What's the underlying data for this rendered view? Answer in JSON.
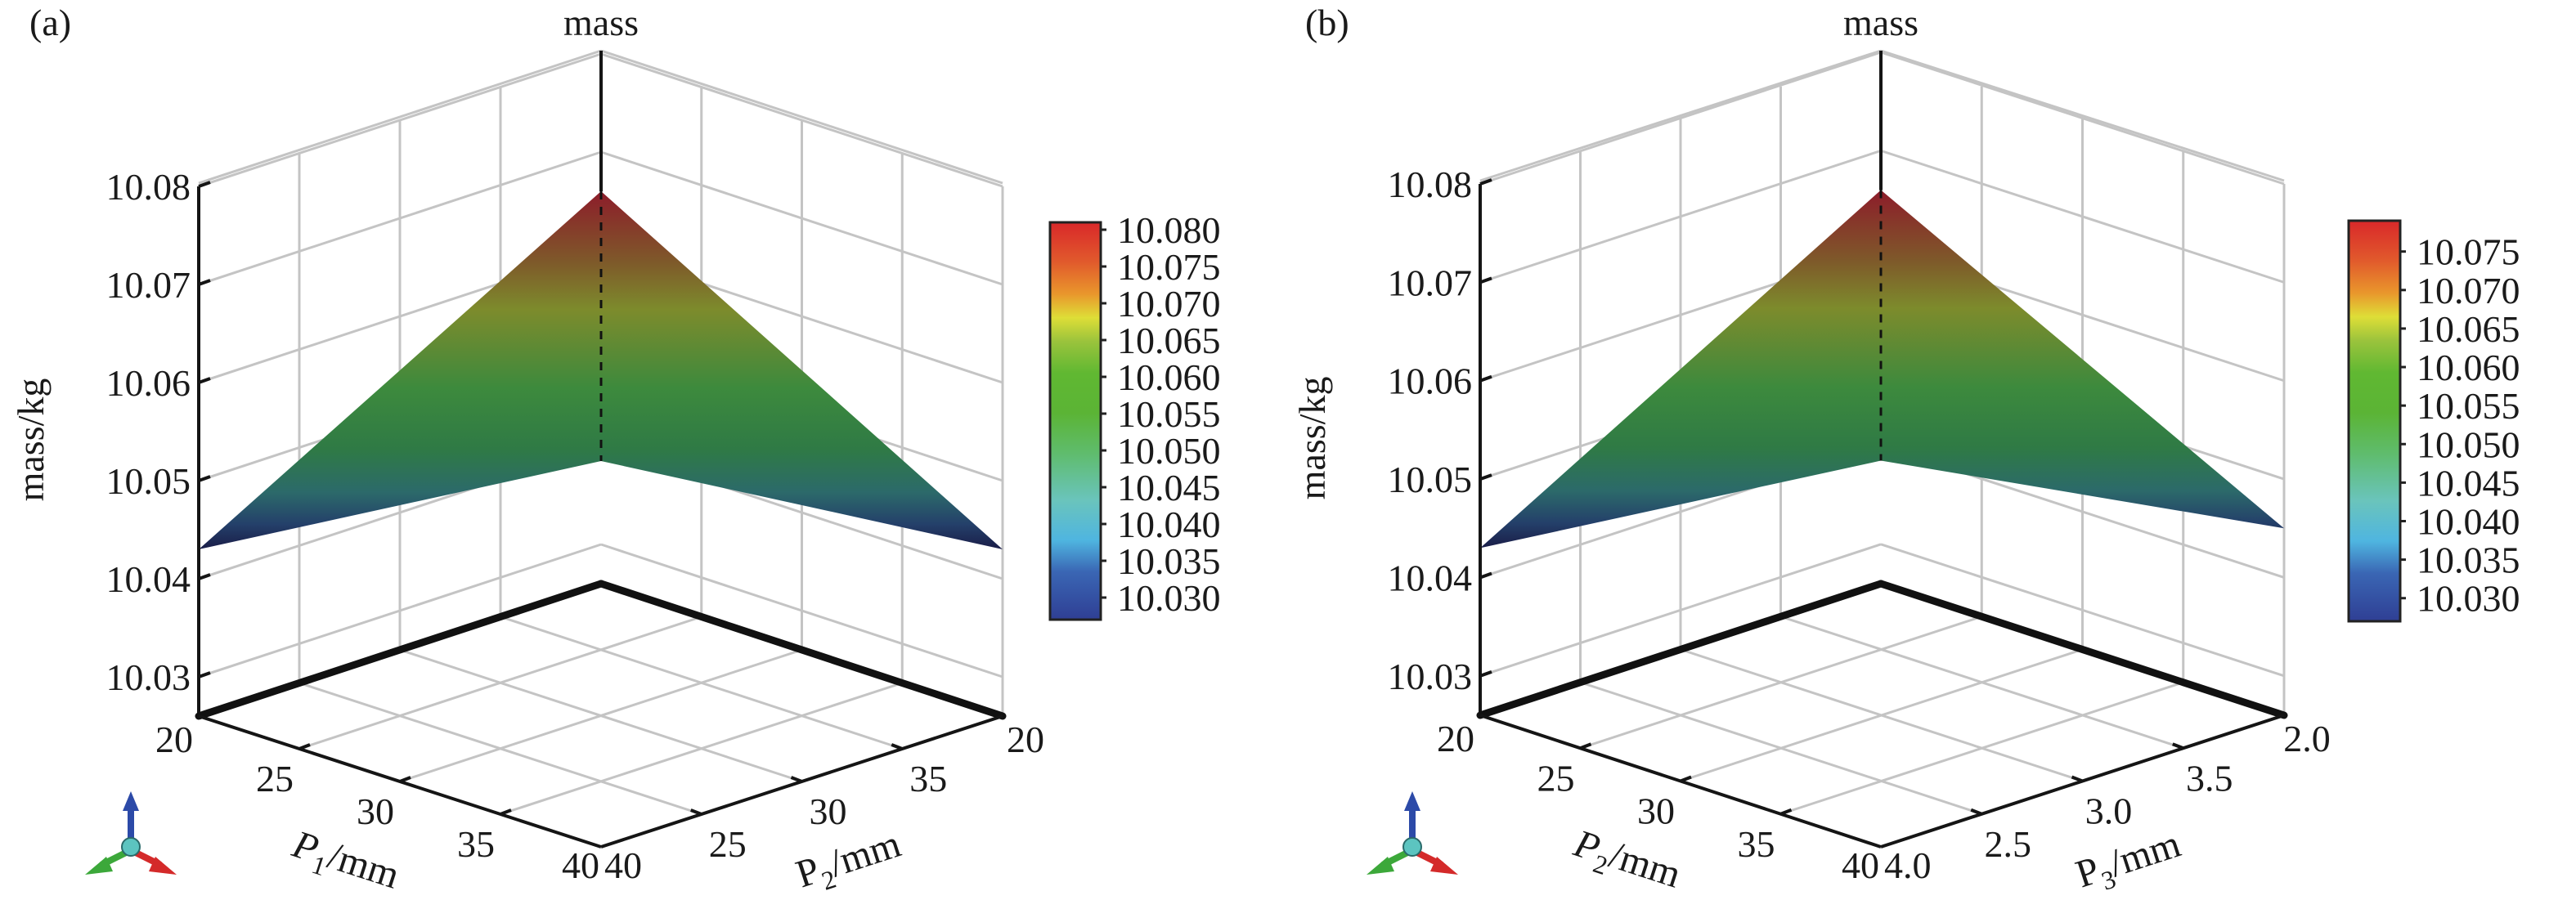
{
  "panels": [
    {
      "label": "(a)",
      "title": "mass",
      "zlabel": "mass/kg",
      "x1_label_main": "P",
      "x1_label_sub": "1",
      "x1_label_unit": "/mm",
      "x2_label_main": "P",
      "x2_label_sub": "2",
      "x2_label_unit": "/mm",
      "x1_ticks": [
        "20",
        "25",
        "30",
        "35",
        "40"
      ],
      "x2_ticks": [
        "20",
        "25",
        "30",
        "35",
        "40"
      ],
      "z_ticks": [
        "10.08",
        "10.07",
        "10.06",
        "10.05",
        "10.04",
        "10.03"
      ],
      "colorbar_ticks": [
        "10.080",
        "10.075",
        "10.070",
        "10.065",
        "10.060",
        "10.055",
        "10.050",
        "10.045",
        "10.040",
        "10.035",
        "10.030"
      ]
    },
    {
      "label": "(b)",
      "title": "mass",
      "zlabel": "mass/kg",
      "x1_label_main": "P",
      "x1_label_sub": "2",
      "x1_label_unit": "/mm",
      "x2_label_main": "P",
      "x2_label_sub": "3",
      "x2_label_unit": "/mm",
      "x1_ticks": [
        "20",
        "25",
        "30",
        "35",
        "40"
      ],
      "x2_ticks": [
        "2.0",
        "2.5",
        "3.0",
        "3.5",
        "4.0"
      ],
      "z_ticks": [
        "10.08",
        "10.07",
        "10.06",
        "10.05",
        "10.04",
        "10.03"
      ],
      "colorbar_ticks": [
        "10.075",
        "10.070",
        "10.065",
        "10.060",
        "10.055",
        "10.050",
        "10.045",
        "10.040",
        "10.035",
        "10.030"
      ]
    }
  ],
  "chart_data": [
    {
      "type": "surface3d",
      "title": "mass",
      "panel": "(a)",
      "xlabel": "P1/mm",
      "ylabel": "P2/mm",
      "zlabel": "mass/kg",
      "xlim": [
        20,
        40
      ],
      "ylim": [
        20,
        40
      ],
      "zlim": [
        10.026,
        10.08
      ],
      "z_ticks": [
        10.03,
        10.04,
        10.05,
        10.06,
        10.07,
        10.08
      ],
      "corners": [
        {
          "x": 20,
          "y": 20,
          "z": 10.043
        },
        {
          "x": 40,
          "y": 20,
          "z": 10.043
        },
        {
          "x": 20,
          "y": 40,
          "z": 10.066
        },
        {
          "x": 40,
          "y": 40,
          "z": 10.0385
        }
      ],
      "colorbar": {
        "min": 10.027,
        "max": 10.081,
        "ticks": [
          10.03,
          10.035,
          10.04,
          10.045,
          10.05,
          10.055,
          10.06,
          10.065,
          10.07,
          10.075,
          10.08
        ]
      },
      "colormap": [
        "#2f3f94",
        "#3a71b8",
        "#4fb5e0",
        "#6ac4bc",
        "#5fbc6c",
        "#5bb435",
        "#60b832",
        "#9ac33c",
        "#dede37",
        "#e9962c",
        "#e15a2c",
        "#d9282a"
      ],
      "grid": true
    },
    {
      "type": "surface3d",
      "title": "mass",
      "panel": "(b)",
      "xlabel": "P2/mm",
      "ylabel": "P3/mm",
      "zlabel": "mass/kg",
      "xlim": [
        20,
        40
      ],
      "ylim": [
        2.0,
        4.0
      ],
      "zlim": [
        10.026,
        10.08
      ],
      "z_ticks": [
        10.03,
        10.04,
        10.05,
        10.06,
        10.07,
        10.08
      ],
      "corners": [
        {
          "x": 20,
          "y": 2.0,
          "z": 10.043
        },
        {
          "x": 40,
          "y": 2.0,
          "z": 10.045
        },
        {
          "x": 20,
          "y": 4.0,
          "z": 10.066
        },
        {
          "x": 40,
          "y": 4.0,
          "z": 10.0385
        }
      ],
      "colorbar": {
        "min": 10.027,
        "max": 10.079,
        "ticks": [
          10.03,
          10.035,
          10.04,
          10.045,
          10.05,
          10.055,
          10.06,
          10.065,
          10.07,
          10.075
        ]
      },
      "colormap": [
        "#2f3f94",
        "#3a71b8",
        "#4fb5e0",
        "#6ac4bc",
        "#5fbc6c",
        "#5bb435",
        "#60b832",
        "#9ac33c",
        "#dede37",
        "#e9962c",
        "#e15a2c",
        "#d9282a"
      ],
      "grid": true
    }
  ]
}
